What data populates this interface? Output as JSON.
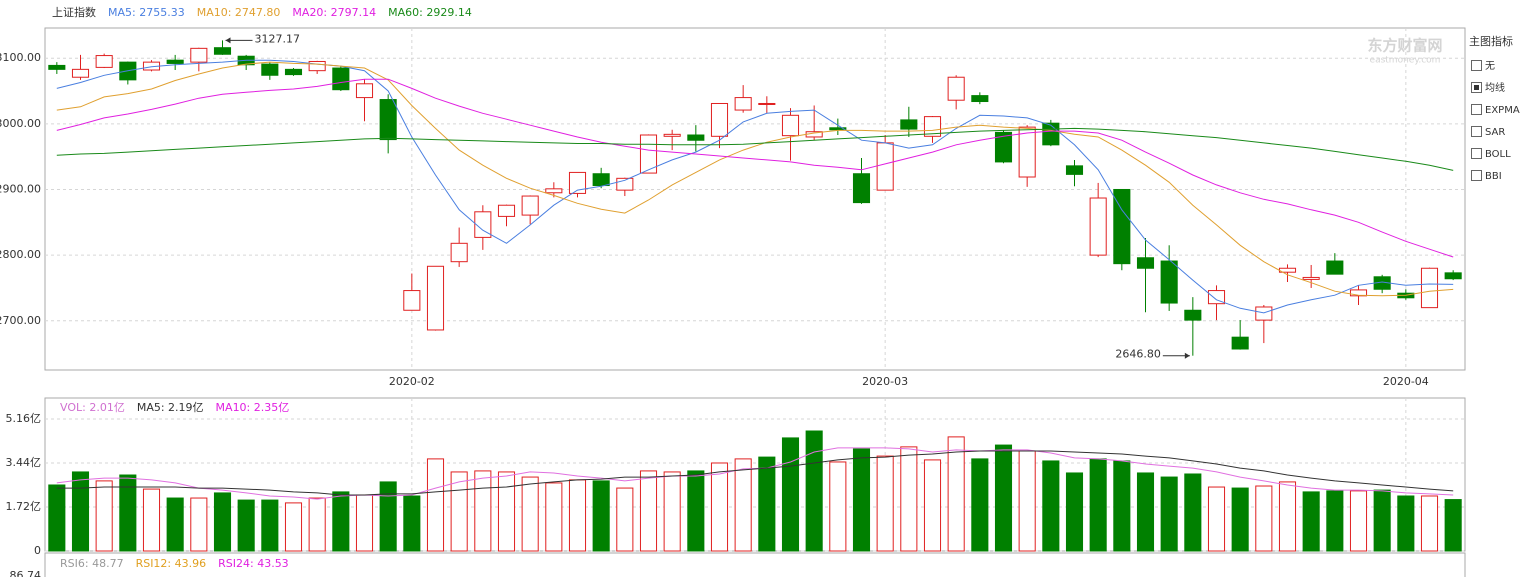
{
  "chart_data": [
    {
      "type": "candlestick",
      "title": "上证指数",
      "categories": [
        null,
        null,
        null,
        null,
        null,
        null,
        null,
        null,
        null,
        null,
        null,
        null,
        null,
        null,
        null,
        "2020-02",
        null,
        null,
        null,
        null,
        null,
        null,
        null,
        null,
        null,
        null,
        null,
        null,
        null,
        null,
        null,
        null,
        null,
        null,
        null,
        "2020-03",
        null,
        null,
        null,
        null,
        null,
        null,
        null,
        null,
        null,
        null,
        null,
        null,
        null,
        null,
        null,
        null,
        null,
        null,
        null,
        null,
        null,
        "2020-04",
        null,
        null
      ],
      "open": [
        3089,
        3071,
        3086,
        3094,
        3082,
        3097,
        3094,
        3116,
        3103,
        3091,
        3083,
        3081,
        3085,
        3040,
        3037,
        2716,
        2686,
        2790,
        2827,
        2859,
        2861,
        2895,
        2894,
        2924,
        2899,
        2925,
        2981,
        2983,
        2981,
        3021,
        3030,
        2982,
        2980,
        2994,
        2924,
        2899,
        3006,
        2981,
        3036,
        3043,
        2987,
        2919,
        3001,
        2936,
        2800,
        2900,
        2796,
        2791,
        2716,
        2726,
        2675,
        2701,
        2774,
        2763,
        2791,
        2738,
        2767,
        2742,
        2720,
        2773
      ],
      "high": [
        3094,
        3105,
        3107,
        3095,
        3097,
        3105,
        3116,
        3127.17,
        3105,
        3094,
        3085,
        3096,
        3088,
        3068,
        3045,
        2772,
        2783,
        2842,
        2876,
        2877,
        2891,
        2911,
        2926,
        2933,
        2918,
        2984,
        2991,
        2998,
        3031,
        3059,
        3042,
        3024,
        3028,
        3008,
        2948,
        2983,
        3026,
        3012,
        3074,
        3048,
        2990,
        2998,
        3006,
        2945,
        2910,
        2900,
        2826,
        2815,
        2736,
        2754,
        2701,
        2724,
        2786,
        2785,
        2803,
        2754,
        2770,
        2748,
        2781,
        2777
      ],
      "low": [
        3076,
        3067,
        3085,
        3060,
        3080,
        3082,
        3080,
        3105,
        3082,
        3067,
        3073,
        3076,
        3050,
        3004,
        2955,
        2716,
        2685,
        2782,
        2808,
        2844,
        2847,
        2888,
        2888,
        2902,
        2890,
        2925,
        2960,
        2958,
        2963,
        3017,
        3016,
        2944,
        2975,
        2983,
        2878,
        2899,
        2980,
        2971,
        3022,
        3030,
        2940,
        2904,
        2966,
        2905,
        2797,
        2777,
        2713,
        2715,
        2646.8,
        2701,
        2656,
        2666,
        2759,
        2750,
        2771,
        2724,
        2742,
        2732,
        2720,
        2762
      ],
      "close": [
        3083,
        3083,
        3104,
        3067,
        3094,
        3092,
        3115,
        3106,
        3090,
        3074,
        3075,
        3095,
        3052,
        3061,
        2976,
        2746,
        2783,
        2818,
        2866,
        2876,
        2890,
        2901,
        2926,
        2906,
        2917,
        2983,
        2984,
        2975,
        3031,
        3040,
        3031,
        3013,
        2988,
        2991,
        2880,
        2971,
        2992,
        3011,
        3071,
        3034,
        2942,
        2995,
        2968,
        2923,
        2887,
        2787,
        2780,
        2727,
        2701,
        2746,
        2657,
        2721,
        2780,
        2766,
        2771,
        2747,
        2748,
        2735,
        2780,
        2764
      ],
      "up_color": "#e02020",
      "down_color": "#008000",
      "series": [
        {
          "name": "MA5: 2755.33",
          "color": "#4a7fe0",
          "values": [
            3054,
            3063,
            3074,
            3081,
            3087,
            3090,
            3092,
            3094,
            3097,
            3097,
            3095,
            3091,
            3088,
            3081,
            3050,
            2980,
            2922,
            2869,
            2838,
            2818,
            2846,
            2876,
            2899,
            2905,
            2914,
            2930,
            2945,
            2957,
            2975,
            3003,
            3016,
            3019,
            3021,
            2998,
            2975,
            2971,
            2963,
            2968,
            2993,
            3013,
            3012,
            3009,
            2998,
            2968,
            2930,
            2869,
            2823,
            2793,
            2762,
            2732,
            2719,
            2712,
            2724,
            2732,
            2739,
            2754,
            2759,
            2754,
            2756,
            2755.33
          ]
        },
        {
          "name": "MA10: 2747.80",
          "color": "#e0a030",
          "values": [
            3021,
            3026,
            3041,
            3046,
            3053,
            3066,
            3076,
            3085,
            3091,
            3094,
            3092,
            3091,
            3088,
            3085,
            3067,
            3028,
            2993,
            2960,
            2937,
            2917,
            2902,
            2891,
            2879,
            2870,
            2864,
            2884,
            2907,
            2926,
            2945,
            2960,
            2972,
            2980,
            2986,
            2990,
            2990,
            2989,
            2989,
            2990,
            2995,
            2998,
            2995,
            2993,
            2990,
            2984,
            2980,
            2960,
            2937,
            2911,
            2876,
            2846,
            2815,
            2790,
            2770,
            2758,
            2745,
            2739,
            2738,
            2739,
            2745,
            2747.8
          ]
        },
        {
          "name": "MA20: 2797.14",
          "color": "#e020e0",
          "values": [
            2990,
            2999,
            3009,
            3015,
            3022,
            3030,
            3039,
            3045,
            3048,
            3051,
            3053,
            3057,
            3063,
            3068,
            3068,
            3054,
            3039,
            3027,
            3016,
            3007,
            2998,
            2989,
            2980,
            2972,
            2966,
            2960,
            2957,
            2954,
            2951,
            2948,
            2945,
            2942,
            2937,
            2934,
            2930,
            2939,
            2948,
            2957,
            2968,
            2975,
            2981,
            2986,
            2989,
            2989,
            2986,
            2975,
            2957,
            2940,
            2922,
            2907,
            2895,
            2885,
            2878,
            2869,
            2861,
            2850,
            2835,
            2821,
            2809,
            2797.14
          ]
        },
        {
          "name": "MA60: 2929.14",
          "color": "#1a8a1a",
          "values": [
            2952,
            2954,
            2955,
            2957,
            2959,
            2961,
            2963,
            2965,
            2967,
            2969,
            2971,
            2973,
            2975,
            2977,
            2978,
            2977,
            2976,
            2975,
            2974,
            2973,
            2972,
            2971,
            2970,
            2970,
            2969,
            2969,
            2968,
            2968,
            2968,
            2969,
            2971,
            2973,
            2975,
            2977,
            2979,
            2981,
            2983,
            2985,
            2987,
            2989,
            2990,
            2991,
            2992,
            2993,
            2992,
            2990,
            2988,
            2985,
            2982,
            2979,
            2975,
            2971,
            2967,
            2963,
            2958,
            2953,
            2948,
            2943,
            2937,
            2929.14
          ]
        }
      ],
      "annotations": [
        {
          "label": "3127.17",
          "value": 3127.17,
          "at": 7,
          "side": "right"
        },
        {
          "label": "2646.80",
          "value": 2646.8,
          "at": 48,
          "side": "left"
        }
      ],
      "ylim": [
        2625,
        3146
      ],
      "yticks": [
        {
          "value": 2700,
          "label": "2700.00"
        },
        {
          "value": 2800,
          "label": "2800.00"
        },
        {
          "value": 2900,
          "label": "2900.00"
        },
        {
          "value": 3000,
          "label": "3000.00"
        },
        {
          "value": 3100,
          "label": "3100.00"
        }
      ],
      "grid": true
    },
    {
      "type": "bar",
      "title": "VOL: 2.01亿",
      "title_color": "#d070d0",
      "values": [
        2.58,
        3.09,
        2.74,
        2.97,
        2.42,
        2.07,
        2.07,
        2.27,
        1.99,
        1.99,
        1.88,
        2.07,
        2.31,
        2.19,
        2.7,
        2.15,
        3.6,
        3.09,
        3.13,
        3.09,
        2.89,
        2.66,
        2.78,
        2.74,
        2.46,
        3.13,
        3.09,
        3.13,
        3.44,
        3.6,
        3.67,
        4.42,
        4.69,
        3.48,
        3.99,
        3.71,
        4.07,
        3.56,
        4.46,
        3.6,
        4.14,
        3.91,
        3.52,
        3.05,
        3.6,
        3.52,
        3.05,
        2.89,
        3.01,
        2.5,
        2.46,
        2.54,
        2.7,
        2.31,
        2.35,
        2.35,
        2.38,
        2.15,
        2.15,
        2.01
      ],
      "up": [
        false,
        false,
        true,
        false,
        true,
        false,
        true,
        false,
        false,
        false,
        true,
        true,
        false,
        true,
        false,
        false,
        true,
        true,
        true,
        true,
        true,
        true,
        true,
        false,
        true,
        true,
        true,
        false,
        true,
        true,
        false,
        false,
        false,
        true,
        false,
        true,
        true,
        true,
        true,
        false,
        false,
        true,
        false,
        false,
        false,
        false,
        false,
        false,
        false,
        true,
        false,
        true,
        true,
        false,
        false,
        true,
        false,
        false,
        true,
        false
      ],
      "up_color": "#e02020",
      "down_color": "#008000",
      "series": [
        {
          "name": "MA5: 2.19亿",
          "color": "#e070e0",
          "label_color": "#333333",
          "values": [
            2.66,
            2.78,
            2.85,
            2.85,
            2.78,
            2.66,
            2.46,
            2.38,
            2.27,
            2.15,
            2.11,
            2.03,
            2.15,
            2.19,
            2.15,
            2.19,
            2.46,
            2.7,
            2.85,
            2.93,
            3.09,
            3.05,
            2.93,
            2.85,
            2.74,
            2.85,
            2.93,
            2.93,
            3.01,
            3.21,
            3.24,
            3.48,
            3.87,
            4.03,
            4.03,
            4.03,
            3.99,
            3.87,
            3.95,
            3.91,
            3.95,
            3.95,
            3.83,
            3.64,
            3.6,
            3.52,
            3.4,
            3.32,
            3.24,
            3.09,
            2.89,
            2.74,
            2.58,
            2.46,
            2.38,
            2.38,
            2.35,
            2.27,
            2.23,
            2.19
          ]
        },
        {
          "name": "MA10: 2.35亿",
          "color": "#333333",
          "label_color": "#e020e0",
          "values": [
            2.46,
            2.46,
            2.5,
            2.5,
            2.5,
            2.5,
            2.46,
            2.46,
            2.42,
            2.38,
            2.31,
            2.27,
            2.19,
            2.19,
            2.23,
            2.23,
            2.31,
            2.38,
            2.46,
            2.5,
            2.62,
            2.7,
            2.78,
            2.81,
            2.89,
            2.89,
            2.93,
            2.97,
            3.09,
            3.17,
            3.24,
            3.32,
            3.44,
            3.56,
            3.64,
            3.67,
            3.75,
            3.79,
            3.87,
            3.91,
            3.91,
            3.91,
            3.91,
            3.87,
            3.83,
            3.79,
            3.71,
            3.64,
            3.52,
            3.4,
            3.24,
            3.13,
            2.97,
            2.85,
            2.74,
            2.66,
            2.58,
            2.5,
            2.42,
            2.35
          ]
        }
      ],
      "ylim": [
        0,
        5.98
      ],
      "yticks": [
        0,
        {
          "value": 1.72,
          "label": "1.72亿"
        },
        {
          "value": 3.44,
          "label": "3.44亿"
        },
        {
          "value": 5.16,
          "label": "5.16亿"
        }
      ],
      "grid": true
    }
  ],
  "rsi_panel": {
    "series": [
      {
        "name": "RSI6: 48.77",
        "color": "#999999"
      },
      {
        "name": "RSI12: 43.96",
        "color": "#e0a020"
      },
      {
        "name": "RSI24: 43.53",
        "color": "#e020e0"
      }
    ],
    "top_tick": 86.74
  },
  "sidebar": {
    "title": "主图指标",
    "options": [
      "无",
      "均线",
      "EXPMA",
      "SAR",
      "BOLL",
      "BBI"
    ],
    "selected": 1
  },
  "watermark": {
    "main": "东方财富网",
    "sub": "eastmoney.com"
  }
}
